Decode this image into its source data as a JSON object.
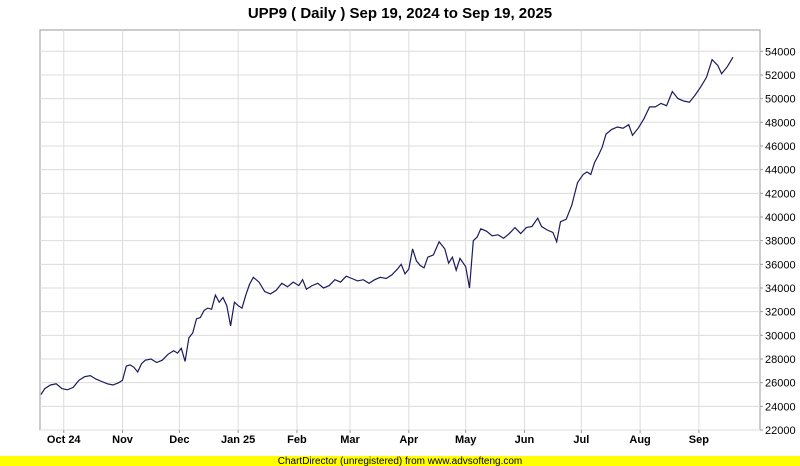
{
  "chart_data": {
    "type": "line",
    "title": "UPP9 ( Daily ) Sep 19, 2024 to Sep 19, 2025",
    "xlabel": "",
    "ylabel": "",
    "ylim": [
      22000,
      55800
    ],
    "y_ticks": [
      22000,
      24000,
      26000,
      28000,
      30000,
      32000,
      34000,
      36000,
      38000,
      40000,
      42000,
      44000,
      46000,
      48000,
      50000,
      52000,
      54000
    ],
    "x_tick_labels": [
      "Oct 24",
      "Nov",
      "Dec",
      "Jan 25",
      "Feb",
      "Mar",
      "Apr",
      "May",
      "Jun",
      "Jul",
      "Aug",
      "Sep"
    ],
    "x_tick_dates": [
      "2024-10-01",
      "2024-11-01",
      "2024-12-01",
      "2025-01-01",
      "2025-02-01",
      "2025-03-01",
      "2025-04-01",
      "2025-05-01",
      "2025-06-01",
      "2025-07-01",
      "2025-08-01",
      "2025-09-01"
    ],
    "bold_ticks": [
      "Oct 24",
      "Jan 25"
    ],
    "grid": true,
    "series": [
      {
        "color": "#1a1a5e",
        "points": [
          [
            "2024-09-19",
            25000
          ],
          [
            "2024-09-21",
            25500
          ],
          [
            "2024-09-24",
            25800
          ],
          [
            "2024-09-27",
            25900
          ],
          [
            "2024-09-30",
            25500
          ],
          [
            "2024-10-03",
            25400
          ],
          [
            "2024-10-06",
            25600
          ],
          [
            "2024-10-09",
            26200
          ],
          [
            "2024-10-12",
            26500
          ],
          [
            "2024-10-15",
            26600
          ],
          [
            "2024-10-18",
            26300
          ],
          [
            "2024-10-21",
            26100
          ],
          [
            "2024-10-24",
            25900
          ],
          [
            "2024-10-27",
            25800
          ],
          [
            "2024-10-30",
            26000
          ],
          [
            "2024-11-01",
            26200
          ],
          [
            "2024-11-03",
            27400
          ],
          [
            "2024-11-05",
            27500
          ],
          [
            "2024-11-07",
            27300
          ],
          [
            "2024-11-09",
            26900
          ],
          [
            "2024-11-11",
            27600
          ],
          [
            "2024-11-13",
            27900
          ],
          [
            "2024-11-16",
            28000
          ],
          [
            "2024-11-19",
            27700
          ],
          [
            "2024-11-22",
            27900
          ],
          [
            "2024-11-25",
            28400
          ],
          [
            "2024-11-28",
            28700
          ],
          [
            "2024-11-30",
            28500
          ],
          [
            "2024-12-02",
            28900
          ],
          [
            "2024-12-04",
            27800
          ],
          [
            "2024-12-06",
            29800
          ],
          [
            "2024-12-08",
            30200
          ],
          [
            "2024-12-10",
            31400
          ],
          [
            "2024-12-12",
            31500
          ],
          [
            "2024-12-14",
            32100
          ],
          [
            "2024-12-16",
            32300
          ],
          [
            "2024-12-18",
            32200
          ],
          [
            "2024-12-20",
            33400
          ],
          [
            "2024-12-22",
            32800
          ],
          [
            "2024-12-24",
            33200
          ],
          [
            "2024-12-26",
            32500
          ],
          [
            "2024-12-28",
            30800
          ],
          [
            "2024-12-30",
            32800
          ],
          [
            "2025-01-01",
            32500
          ],
          [
            "2025-01-03",
            32300
          ],
          [
            "2025-01-05",
            33400
          ],
          [
            "2025-01-07",
            34300
          ],
          [
            "2025-01-09",
            34900
          ],
          [
            "2025-01-12",
            34500
          ],
          [
            "2025-01-15",
            33700
          ],
          [
            "2025-01-18",
            33500
          ],
          [
            "2025-01-21",
            33800
          ],
          [
            "2025-01-24",
            34400
          ],
          [
            "2025-01-27",
            34100
          ],
          [
            "2025-01-30",
            34500
          ],
          [
            "2025-02-02",
            34200
          ],
          [
            "2025-02-04",
            34700
          ],
          [
            "2025-02-06",
            33900
          ],
          [
            "2025-02-09",
            34200
          ],
          [
            "2025-02-12",
            34400
          ],
          [
            "2025-02-15",
            34000
          ],
          [
            "2025-02-18",
            34200
          ],
          [
            "2025-02-21",
            34700
          ],
          [
            "2025-02-24",
            34500
          ],
          [
            "2025-02-27",
            35000
          ],
          [
            "2025-03-02",
            34800
          ],
          [
            "2025-03-05",
            34600
          ],
          [
            "2025-03-08",
            34700
          ],
          [
            "2025-03-11",
            34400
          ],
          [
            "2025-03-14",
            34700
          ],
          [
            "2025-03-17",
            34900
          ],
          [
            "2025-03-20",
            34800
          ],
          [
            "2025-03-23",
            35100
          ],
          [
            "2025-03-26",
            35600
          ],
          [
            "2025-03-28",
            36000
          ],
          [
            "2025-03-30",
            35200
          ],
          [
            "2025-04-01",
            35600
          ],
          [
            "2025-04-03",
            37300
          ],
          [
            "2025-04-05",
            36300
          ],
          [
            "2025-04-07",
            35900
          ],
          [
            "2025-04-09",
            35700
          ],
          [
            "2025-04-11",
            36600
          ],
          [
            "2025-04-14",
            36800
          ],
          [
            "2025-04-17",
            37900
          ],
          [
            "2025-04-20",
            37300
          ],
          [
            "2025-04-22",
            36100
          ],
          [
            "2025-04-24",
            36600
          ],
          [
            "2025-04-26",
            35500
          ],
          [
            "2025-04-28",
            36500
          ],
          [
            "2025-05-01",
            35800
          ],
          [
            "2025-05-03",
            34000
          ],
          [
            "2025-05-05",
            38000
          ],
          [
            "2025-05-07",
            38300
          ],
          [
            "2025-05-09",
            39000
          ],
          [
            "2025-05-12",
            38800
          ],
          [
            "2025-05-15",
            38400
          ],
          [
            "2025-05-18",
            38500
          ],
          [
            "2025-05-21",
            38200
          ],
          [
            "2025-05-24",
            38600
          ],
          [
            "2025-05-27",
            39100
          ],
          [
            "2025-05-30",
            38600
          ],
          [
            "2025-06-02",
            39100
          ],
          [
            "2025-06-05",
            39200
          ],
          [
            "2025-06-08",
            39900
          ],
          [
            "2025-06-10",
            39200
          ],
          [
            "2025-06-13",
            38900
          ],
          [
            "2025-06-16",
            38700
          ],
          [
            "2025-06-18",
            37900
          ],
          [
            "2025-06-20",
            39600
          ],
          [
            "2025-06-23",
            39800
          ],
          [
            "2025-06-26",
            41000
          ],
          [
            "2025-06-29",
            42900
          ],
          [
            "2025-07-02",
            43600
          ],
          [
            "2025-07-04",
            43800
          ],
          [
            "2025-07-06",
            43600
          ],
          [
            "2025-07-08",
            44600
          ],
          [
            "2025-07-10",
            45200
          ],
          [
            "2025-07-12",
            45900
          ],
          [
            "2025-07-14",
            47000
          ],
          [
            "2025-07-17",
            47400
          ],
          [
            "2025-07-20",
            47600
          ],
          [
            "2025-07-23",
            47500
          ],
          [
            "2025-07-26",
            47800
          ],
          [
            "2025-07-28",
            46900
          ],
          [
            "2025-07-31",
            47500
          ],
          [
            "2025-08-03",
            48300
          ],
          [
            "2025-08-06",
            49300
          ],
          [
            "2025-08-09",
            49300
          ],
          [
            "2025-08-12",
            49600
          ],
          [
            "2025-08-15",
            49400
          ],
          [
            "2025-08-18",
            50600
          ],
          [
            "2025-08-21",
            50000
          ],
          [
            "2025-08-24",
            49800
          ],
          [
            "2025-08-27",
            49700
          ],
          [
            "2025-08-30",
            50300
          ],
          [
            "2025-09-02",
            51000
          ],
          [
            "2025-09-05",
            51800
          ],
          [
            "2025-09-08",
            53300
          ],
          [
            "2025-09-11",
            52800
          ],
          [
            "2025-09-13",
            52100
          ],
          [
            "2025-09-16",
            52700
          ],
          [
            "2025-09-19",
            53500
          ]
        ]
      }
    ]
  },
  "footer": {
    "text": "ChartDirector (unregistered) from www.advsofteng.com",
    "background": "#ffff00"
  }
}
